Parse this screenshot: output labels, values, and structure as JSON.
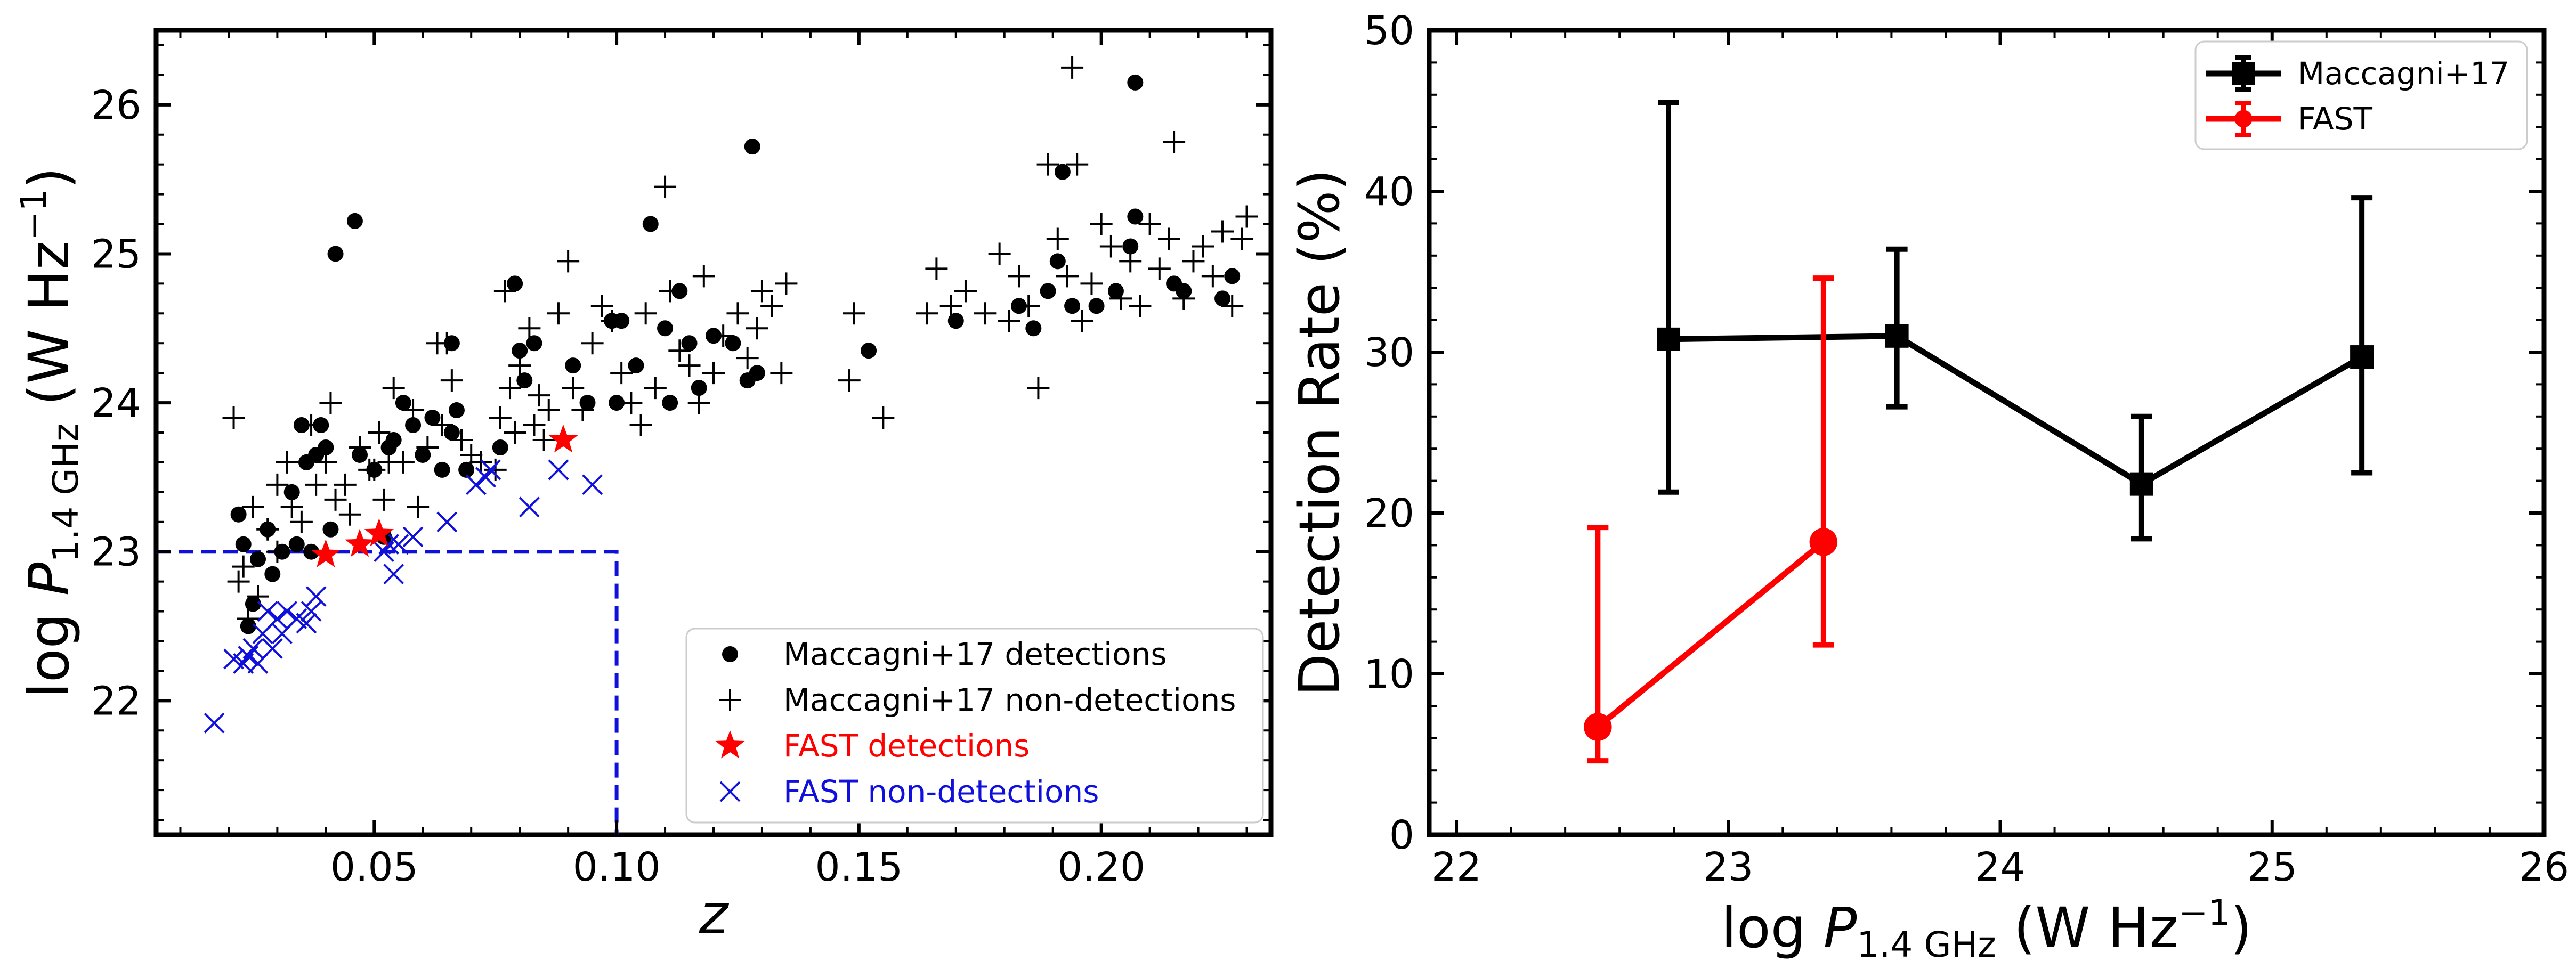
{
  "chart_data": [
    {
      "type": "scatter",
      "xlabel": "z",
      "ylabel": {
        "prefix": "log ",
        "var": "P",
        "sub": "1.4 GHz",
        "unit": " (W Hz",
        "exp": "−1",
        "close": ")"
      },
      "xlim": [
        0.005,
        0.235
      ],
      "ylim": [
        21.1,
        26.5
      ],
      "xticks": [
        0.05,
        0.1,
        0.15,
        0.2
      ],
      "xtick_labels": [
        "0.05",
        "0.10",
        "0.15",
        "0.20"
      ],
      "yticks": [
        22,
        23,
        24,
        25,
        26
      ],
      "ytick_labels": [
        "22",
        "23",
        "24",
        "25",
        "26"
      ],
      "grid": false,
      "legend_position": "lower-right",
      "annotations": [
        {
          "type": "dashed-limit",
          "color": "#1010dd",
          "path": [
            [
              0.005,
              23.0
            ],
            [
              0.1,
              23.0
            ],
            [
              0.1,
              21.1
            ]
          ]
        }
      ],
      "series": [
        {
          "name": "Maccagni+17 detections",
          "marker": "circle",
          "color": "#000000",
          "points": [
            [
              0.022,
              23.25
            ],
            [
              0.023,
              23.05
            ],
            [
              0.024,
              22.5
            ],
            [
              0.025,
              22.65
            ],
            [
              0.026,
              22.95
            ],
            [
              0.028,
              23.15
            ],
            [
              0.029,
              22.85
            ],
            [
              0.031,
              23.0
            ],
            [
              0.033,
              23.4
            ],
            [
              0.034,
              23.05
            ],
            [
              0.035,
              23.85
            ],
            [
              0.036,
              23.6
            ],
            [
              0.037,
              23.0
            ],
            [
              0.038,
              23.65
            ],
            [
              0.039,
              23.85
            ],
            [
              0.04,
              23.7
            ],
            [
              0.041,
              23.15
            ],
            [
              0.042,
              25.0
            ],
            [
              0.046,
              25.22
            ],
            [
              0.047,
              23.65
            ],
            [
              0.05,
              23.55
            ],
            [
              0.052,
              23.1
            ],
            [
              0.053,
              23.7
            ],
            [
              0.054,
              23.75
            ],
            [
              0.056,
              24.0
            ],
            [
              0.058,
              23.85
            ],
            [
              0.06,
              23.65
            ],
            [
              0.062,
              23.9
            ],
            [
              0.064,
              23.55
            ],
            [
              0.066,
              24.4
            ],
            [
              0.066,
              23.8
            ],
            [
              0.067,
              23.95
            ],
            [
              0.069,
              23.55
            ],
            [
              0.076,
              23.7
            ],
            [
              0.079,
              24.8
            ],
            [
              0.08,
              24.35
            ],
            [
              0.081,
              24.15
            ],
            [
              0.083,
              24.4
            ],
            [
              0.091,
              24.25
            ],
            [
              0.094,
              24.0
            ],
            [
              0.099,
              24.55
            ],
            [
              0.1,
              24.0
            ],
            [
              0.101,
              24.55
            ],
            [
              0.104,
              24.25
            ],
            [
              0.107,
              25.2
            ],
            [
              0.11,
              24.5
            ],
            [
              0.111,
              24.0
            ],
            [
              0.113,
              24.75
            ],
            [
              0.115,
              24.4
            ],
            [
              0.117,
              24.1
            ],
            [
              0.12,
              24.45
            ],
            [
              0.124,
              24.4
            ],
            [
              0.127,
              24.15
            ],
            [
              0.128,
              25.72
            ],
            [
              0.129,
              24.2
            ],
            [
              0.152,
              24.35
            ],
            [
              0.17,
              24.55
            ],
            [
              0.183,
              24.65
            ],
            [
              0.186,
              24.5
            ],
            [
              0.189,
              24.75
            ],
            [
              0.191,
              24.95
            ],
            [
              0.192,
              25.55
            ],
            [
              0.194,
              24.65
            ],
            [
              0.199,
              24.65
            ],
            [
              0.203,
              24.75
            ],
            [
              0.206,
              25.05
            ],
            [
              0.207,
              25.25
            ],
            [
              0.207,
              26.15
            ],
            [
              0.215,
              24.8
            ],
            [
              0.217,
              24.75
            ],
            [
              0.225,
              24.7
            ],
            [
              0.227,
              24.85
            ]
          ]
        },
        {
          "name": "Maccagni+17 non-detections",
          "marker": "plus",
          "color": "#000000",
          "points": [
            [
              0.021,
              23.9
            ],
            [
              0.022,
              22.8
            ],
            [
              0.023,
              22.9
            ],
            [
              0.024,
              22.55
            ],
            [
              0.025,
              23.3
            ],
            [
              0.026,
              22.7
            ],
            [
              0.028,
              23.15
            ],
            [
              0.03,
              23.0
            ],
            [
              0.03,
              23.45
            ],
            [
              0.032,
              23.6
            ],
            [
              0.033,
              23.3
            ],
            [
              0.035,
              23.2
            ],
            [
              0.037,
              23.85
            ],
            [
              0.038,
              23.45
            ],
            [
              0.04,
              23.6
            ],
            [
              0.041,
              24.0
            ],
            [
              0.042,
              23.35
            ],
            [
              0.044,
              23.45
            ],
            [
              0.045,
              23.25
            ],
            [
              0.047,
              23.7
            ],
            [
              0.049,
              23.55
            ],
            [
              0.05,
              23.55
            ],
            [
              0.051,
              23.8
            ],
            [
              0.052,
              23.35
            ],
            [
              0.053,
              23.6
            ],
            [
              0.054,
              24.1
            ],
            [
              0.056,
              23.6
            ],
            [
              0.058,
              23.95
            ],
            [
              0.059,
              23.3
            ],
            [
              0.061,
              23.7
            ],
            [
              0.063,
              24.4
            ],
            [
              0.064,
              23.85
            ],
            [
              0.065,
              24.4
            ],
            [
              0.066,
              24.15
            ],
            [
              0.068,
              23.75
            ],
            [
              0.07,
              23.65
            ],
            [
              0.072,
              23.6
            ],
            [
              0.075,
              23.55
            ],
            [
              0.076,
              23.9
            ],
            [
              0.077,
              24.75
            ],
            [
              0.078,
              24.1
            ],
            [
              0.079,
              23.8
            ],
            [
              0.08,
              24.25
            ],
            [
              0.082,
              24.5
            ],
            [
              0.083,
              23.85
            ],
            [
              0.084,
              24.05
            ],
            [
              0.085,
              23.75
            ],
            [
              0.086,
              23.95
            ],
            [
              0.088,
              24.6
            ],
            [
              0.09,
              24.95
            ],
            [
              0.091,
              24.1
            ],
            [
              0.093,
              23.95
            ],
            [
              0.095,
              24.4
            ],
            [
              0.097,
              24.65
            ],
            [
              0.099,
              24.55
            ],
            [
              0.101,
              24.2
            ],
            [
              0.103,
              24.0
            ],
            [
              0.105,
              23.85
            ],
            [
              0.106,
              24.6
            ],
            [
              0.108,
              24.1
            ],
            [
              0.11,
              25.45
            ],
            [
              0.111,
              24.75
            ],
            [
              0.113,
              24.35
            ],
            [
              0.115,
              24.25
            ],
            [
              0.117,
              24.0
            ],
            [
              0.118,
              24.85
            ],
            [
              0.12,
              24.2
            ],
            [
              0.122,
              24.45
            ],
            [
              0.125,
              24.6
            ],
            [
              0.127,
              24.3
            ],
            [
              0.129,
              24.5
            ],
            [
              0.13,
              24.75
            ],
            [
              0.132,
              24.65
            ],
            [
              0.134,
              24.2
            ],
            [
              0.135,
              24.8
            ],
            [
              0.148,
              24.15
            ],
            [
              0.149,
              24.6
            ],
            [
              0.155,
              23.9
            ],
            [
              0.164,
              24.6
            ],
            [
              0.166,
              24.9
            ],
            [
              0.169,
              24.65
            ],
            [
              0.172,
              24.75
            ],
            [
              0.176,
              24.6
            ],
            [
              0.179,
              25.0
            ],
            [
              0.181,
              24.55
            ],
            [
              0.183,
              24.85
            ],
            [
              0.185,
              24.65
            ],
            [
              0.187,
              24.1
            ],
            [
              0.189,
              25.6
            ],
            [
              0.191,
              25.1
            ],
            [
              0.193,
              24.85
            ],
            [
              0.194,
              26.25
            ],
            [
              0.195,
              25.6
            ],
            [
              0.196,
              24.55
            ],
            [
              0.198,
              24.8
            ],
            [
              0.2,
              25.2
            ],
            [
              0.202,
              25.05
            ],
            [
              0.204,
              24.7
            ],
            [
              0.206,
              24.95
            ],
            [
              0.208,
              24.65
            ],
            [
              0.21,
              25.2
            ],
            [
              0.212,
              24.9
            ],
            [
              0.214,
              25.1
            ],
            [
              0.215,
              25.75
            ],
            [
              0.217,
              24.7
            ],
            [
              0.219,
              24.95
            ],
            [
              0.221,
              25.05
            ],
            [
              0.223,
              24.85
            ],
            [
              0.225,
              25.15
            ],
            [
              0.227,
              24.65
            ],
            [
              0.229,
              25.1
            ],
            [
              0.23,
              25.25
            ]
          ]
        },
        {
          "name": "FAST detections",
          "marker": "star",
          "color": "#ff0000",
          "points": [
            [
              0.04,
              22.98
            ],
            [
              0.047,
              23.05
            ],
            [
              0.051,
              23.12
            ],
            [
              0.089,
              23.75
            ]
          ]
        },
        {
          "name": "FAST non-detections",
          "marker": "cross",
          "color": "#1010dd",
          "points": [
            [
              0.017,
              21.85
            ],
            [
              0.021,
              22.28
            ],
            [
              0.023,
              22.25
            ],
            [
              0.024,
              22.3
            ],
            [
              0.025,
              22.35
            ],
            [
              0.026,
              22.25
            ],
            [
              0.027,
              22.45
            ],
            [
              0.028,
              22.6
            ],
            [
              0.029,
              22.35
            ],
            [
              0.03,
              22.55
            ],
            [
              0.031,
              22.45
            ],
            [
              0.032,
              22.6
            ],
            [
              0.034,
              22.55
            ],
            [
              0.036,
              22.52
            ],
            [
              0.037,
              22.6
            ],
            [
              0.038,
              22.7
            ],
            [
              0.052,
              23.0
            ],
            [
              0.053,
              23.05
            ],
            [
              0.054,
              22.85
            ],
            [
              0.055,
              23.05
            ],
            [
              0.058,
              23.1
            ],
            [
              0.065,
              23.2
            ],
            [
              0.071,
              23.45
            ],
            [
              0.073,
              23.5
            ],
            [
              0.074,
              23.55
            ],
            [
              0.082,
              23.3
            ],
            [
              0.088,
              23.55
            ],
            [
              0.095,
              23.45
            ]
          ]
        }
      ]
    },
    {
      "type": "line",
      "xlabel": {
        "prefix": "log ",
        "var": "P",
        "sub": "1.4 GHz",
        "unit": " (W Hz",
        "exp": "−1",
        "close": ")"
      },
      "ylabel": "Detection Rate (%)",
      "xlim": [
        21.9,
        26.0
      ],
      "ylim": [
        0,
        50
      ],
      "xticks": [
        22,
        23,
        24,
        25,
        26
      ],
      "xtick_labels": [
        "22",
        "23",
        "24",
        "25",
        "26"
      ],
      "yticks": [
        0,
        10,
        20,
        30,
        40,
        50
      ],
      "ytick_labels": [
        "0",
        "10",
        "20",
        "30",
        "40",
        "50"
      ],
      "grid": false,
      "legend_position": "top-right",
      "series": [
        {
          "name": "Maccagni+17",
          "marker": "square",
          "color": "#000000",
          "x": [
            22.78,
            23.62,
            24.52,
            25.33
          ],
          "y": [
            30.8,
            31.0,
            21.8,
            29.7
          ],
          "err_low": [
            21.3,
            26.6,
            18.4,
            22.5
          ],
          "err_high": [
            45.5,
            36.4,
            26.0,
            39.6
          ]
        },
        {
          "name": "FAST",
          "marker": "circle",
          "color": "#ff0000",
          "x": [
            22.52,
            23.35
          ],
          "y": [
            6.7,
            18.2
          ],
          "err_low": [
            4.6,
            11.8
          ],
          "err_high": [
            19.1,
            34.6
          ]
        }
      ]
    }
  ]
}
